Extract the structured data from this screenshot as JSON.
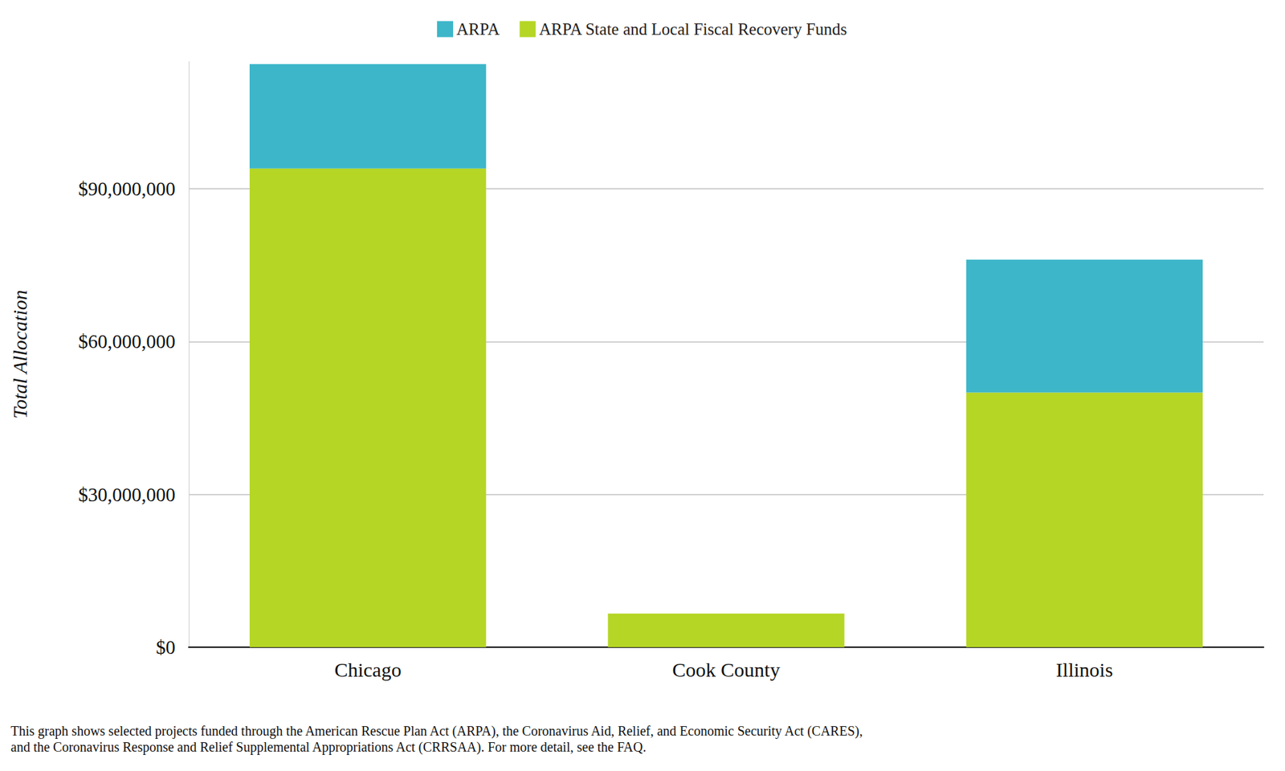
{
  "chart_data": {
    "type": "bar",
    "stacked": true,
    "y_label": "Total Allocation",
    "caption": "This graph shows selected projects funded through the American Rescue Plan Act (ARPA), the Coronavirus Aid, Relief, and Economic Security Act (CARES),\nand the Coronavirus Response and Relief Supplemental Appropriations Act (CRRSAA). For more detail, see the FAQ.",
    "categories": [
      "Chicago",
      "Cook County",
      "Illinois"
    ],
    "series": [
      {
        "name": "ARPA",
        "color": "#3db6c9",
        "values": [
          20500000,
          null,
          26100000
        ]
      },
      {
        "name": "ARPA State and Local Fiscal Recovery Funds",
        "color": "#b5d625",
        "values": [
          94000000,
          6600000,
          50000000
        ]
      }
    ],
    "ylim": [
      0,
      115000000
    ],
    "yticks": [
      {
        "value": 0,
        "label": "$0"
      },
      {
        "value": 30000000,
        "label": "$30,000,000"
      },
      {
        "value": 60000000,
        "label": "$60,000,000"
      },
      {
        "value": 90000000,
        "label": "$90,000,000"
      }
    ],
    "grid": true,
    "legend": "top"
  }
}
